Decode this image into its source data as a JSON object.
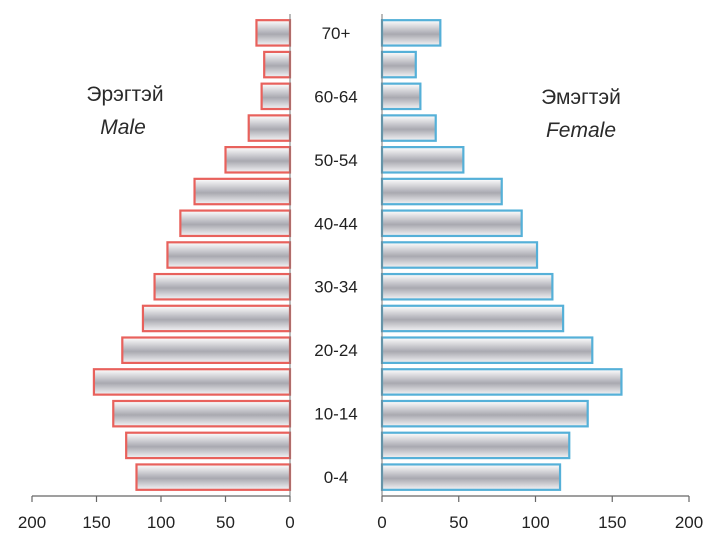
{
  "chart_data": {
    "type": "bar",
    "subtype": "population-pyramid",
    "categories": [
      "0-4",
      "5-9",
      "10-14",
      "15-19",
      "20-24",
      "25-29",
      "30-34",
      "35-39",
      "40-44",
      "45-49",
      "50-54",
      "55-59",
      "60-64",
      "65-69",
      "70+"
    ],
    "category_labels_shown": [
      "0-4",
      "10-14",
      "20-24",
      "30-34",
      "40-44",
      "50-54",
      "60-64",
      "70+"
    ],
    "series": [
      {
        "name": "Эрэгтэй / Male",
        "label_mn": "Эрэгтэй",
        "label_en": "Male",
        "color": "#e8615c",
        "values": [
          119,
          127,
          137,
          152,
          130,
          114,
          105,
          95,
          85,
          74,
          50,
          32,
          22,
          20,
          26
        ]
      },
      {
        "name": "Эмэгтэй / Female",
        "label_mn": "Эмэгтэй",
        "label_en": "Female",
        "color": "#55b0d8",
        "values": [
          116,
          122,
          134,
          156,
          137,
          118,
          111,
          101,
          91,
          78,
          53,
          35,
          25,
          22,
          38
        ]
      }
    ],
    "xlim": [
      0,
      200
    ],
    "xticks": [
      0,
      50,
      100,
      150,
      200
    ],
    "xtick_labels_left": [
      "200",
      "150",
      "100",
      "50",
      "0"
    ],
    "xtick_labels_right": [
      "0",
      "50",
      "100",
      "150",
      "200"
    ],
    "bar_fill": "gradient-grey",
    "grid": false,
    "legend": "none"
  }
}
